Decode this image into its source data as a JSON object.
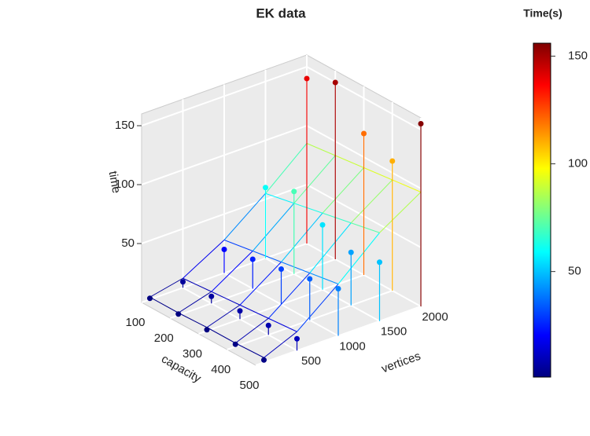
{
  "chart_data": {
    "type": "scatter3d",
    "title": "EK  data",
    "xlabel": "vertices",
    "ylabel": "capacity",
    "zlabel": "time",
    "xlim": [
      0,
      2000
    ],
    "ylim": [
      100,
      500
    ],
    "zlim": [
      0,
      160
    ],
    "xticks": [
      500,
      1000,
      1500,
      2000
    ],
    "yticks": [
      100,
      200,
      300,
      400,
      500
    ],
    "zticks": [
      50,
      100,
      150
    ],
    "grid": true,
    "colormap": "jet",
    "colorbar": {
      "title": "Time(s)",
      "lim": [
        1,
        156
      ],
      "ticks": [
        50,
        100,
        150
      ]
    },
    "points": {
      "x": [
        100,
        100,
        100,
        100,
        100,
        500,
        500,
        500,
        500,
        500,
        1000,
        1000,
        1000,
        1000,
        1000,
        1500,
        1500,
        1500,
        1500,
        1500,
        2000,
        2000,
        2000,
        2000,
        2000
      ],
      "y": [
        100,
        200,
        300,
        400,
        500,
        100,
        200,
        300,
        400,
        500,
        100,
        200,
        300,
        400,
        500,
        100,
        200,
        300,
        400,
        500,
        100,
        200,
        300,
        400,
        500
      ],
      "z": [
        1,
        1,
        1,
        2,
        2,
        5,
        6,
        7,
        8,
        10,
        20,
        25,
        30,
        35,
        40,
        60,
        70,
        55,
        45,
        50,
        140,
        150,
        120,
        110,
        155
      ]
    },
    "surface": {
      "x": [
        100,
        500,
        1000,
        1500,
        2000
      ],
      "y": [
        100,
        200,
        300,
        400,
        500
      ],
      "z": [
        [
          2,
          2,
          3,
          3,
          4
        ],
        [
          8,
          10,
          12,
          14,
          16
        ],
        [
          28,
          32,
          36,
          40,
          44
        ],
        [
          55,
          60,
          65,
          70,
          75
        ],
        [
          85,
          88,
          91,
          94,
          97
        ]
      ]
    }
  }
}
